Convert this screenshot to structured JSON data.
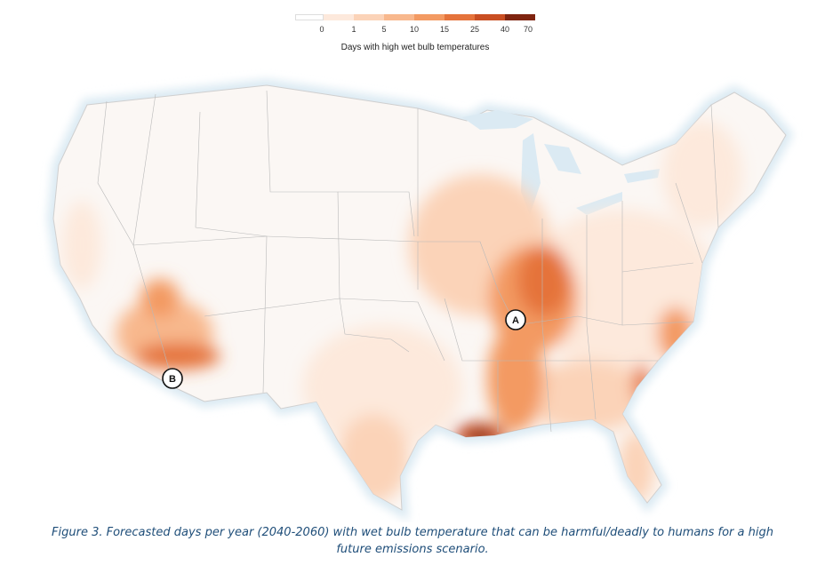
{
  "legend": {
    "title": "Days with high wet bulb temperatures",
    "ticks": [
      "0",
      "1",
      "5",
      "10",
      "15",
      "25",
      "40",
      "70"
    ],
    "colors": [
      "#ffffff",
      "#fde9dc",
      "#fbd3b8",
      "#f8b88d",
      "#f39a62",
      "#e5733b",
      "#c94e22",
      "#7f2410"
    ]
  },
  "markers": [
    {
      "label": "A",
      "region": "Mississippi-Ohio River confluence"
    },
    {
      "label": "B",
      "region": "Southwest Arizona"
    }
  ],
  "caption": {
    "line1": "Figure 3. Forecasted days per year (2040-2060) with wet bulb temperature that can be harmful/deadly to humans for a high",
    "line2": "future emissions scenario."
  }
}
